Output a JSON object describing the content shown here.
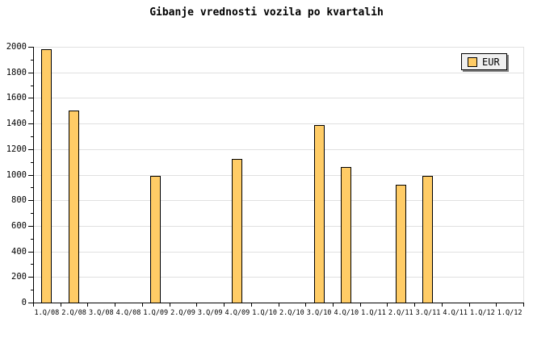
{
  "title": "Gibanje vrednosti vozila po kvartalih",
  "legend": {
    "label": "EUR",
    "position": "top-right"
  },
  "colors": {
    "background": "#FFFFFF",
    "bar_fill": "#FFCC66",
    "bar_border": "#000000",
    "gridline": "#E0E0E0",
    "axis": "#000000",
    "text": "#000000",
    "legend_bg": "#F0F0F0",
    "legend_shadow": "#808080"
  },
  "chart_data": {
    "type": "bar",
    "title": "Gibanje vrednosti vozila po kvartalih",
    "categories": [
      "1.Q/08",
      "2.Q/08",
      "3.Q/08",
      "4.Q/08",
      "1.Q/09",
      "2.Q/09",
      "3.Q/09",
      "4.Q/09",
      "1.Q/10",
      "2.Q/10",
      "3.Q/10",
      "4.Q/10",
      "1.Q/11",
      "2.Q/11",
      "3.Q/11",
      "4.Q/11",
      "1.Q/12",
      "1.Q/12"
    ],
    "series": [
      {
        "name": "EUR",
        "values": [
          1980,
          1500,
          0,
          0,
          990,
          0,
          0,
          1120,
          0,
          0,
          1390,
          1060,
          0,
          920,
          990,
          0,
          0,
          0
        ]
      }
    ],
    "xlabel": "",
    "ylabel": "",
    "ylim": [
      0,
      2000
    ],
    "ytick_major_step": 200,
    "ytick_minor_step": 100,
    "grid": true,
    "legend_position": "top-right"
  }
}
